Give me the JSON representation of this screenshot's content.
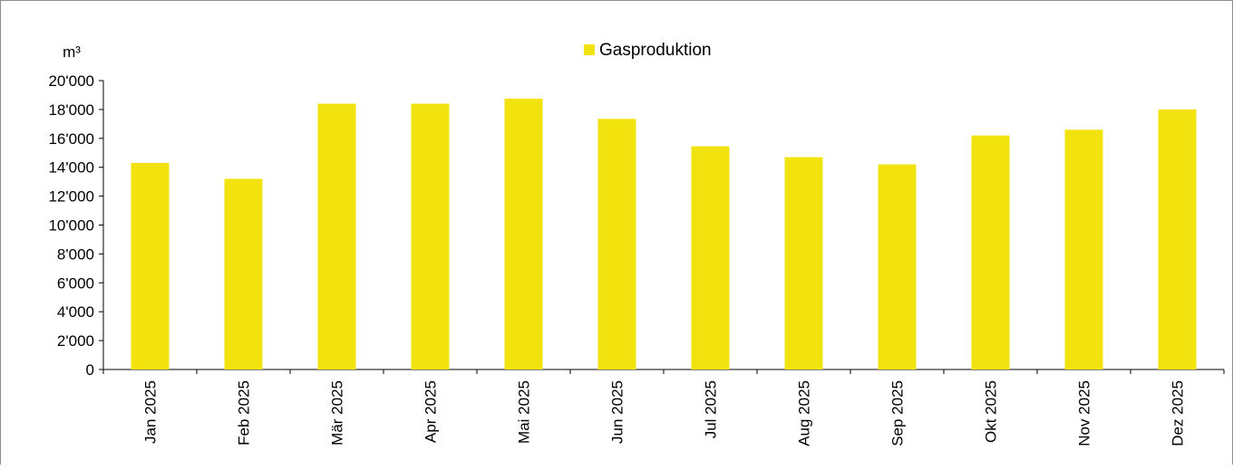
{
  "chart_data": {
    "type": "bar",
    "unit_label": "m³",
    "categories": [
      "Jan 2025",
      "Feb 2025",
      "Mär 2025",
      "Apr 2025",
      "Mai 2025",
      "Jun 2025",
      "Jul 2025",
      "Aug 2025",
      "Sep 2025",
      "Okt 2025",
      "Nov 2025",
      "Dez 2025"
    ],
    "series": [
      {
        "name": "Gasproduktion",
        "color": "#f2e30f",
        "values": [
          14300,
          13200,
          18400,
          18400,
          18750,
          17350,
          15450,
          14700,
          14200,
          16200,
          16600,
          18000
        ]
      }
    ],
    "ylim": [
      0,
      20000
    ],
    "yticks": [
      0,
      2000,
      4000,
      6000,
      8000,
      10000,
      12000,
      14000,
      16000,
      18000,
      20000
    ],
    "ytick_labels": [
      "0",
      "2'000",
      "4'000",
      "6'000",
      "8'000",
      "10'000",
      "12'000",
      "14'000",
      "16'000",
      "18'000",
      "20'000"
    ],
    "legend_position": "top-center",
    "grid": false
  }
}
